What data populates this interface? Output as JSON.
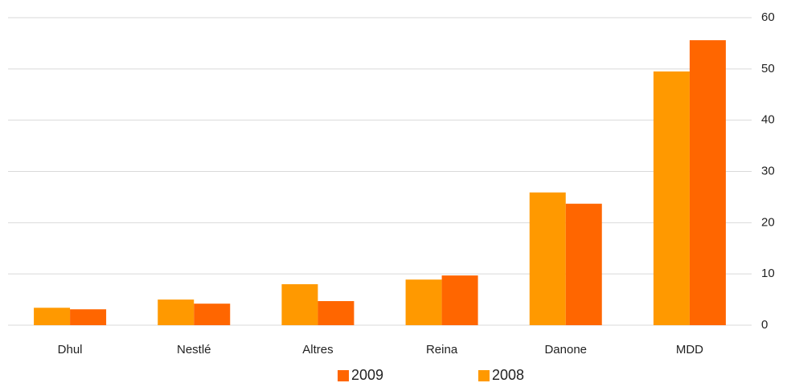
{
  "chart_data": {
    "type": "bar",
    "categories": [
      "Dhul",
      "Nestlé",
      "Altres",
      "Reina",
      "Danone",
      "MDD"
    ],
    "series": [
      {
        "name": "2008",
        "color": "#ff9900",
        "values": [
          3.4,
          5.0,
          8.0,
          8.9,
          25.9,
          49.5
        ]
      },
      {
        "name": "2009",
        "color": "#ff6600",
        "values": [
          3.1,
          4.2,
          4.7,
          9.7,
          23.7,
          55.6
        ]
      }
    ],
    "ylim": [
      0,
      60
    ],
    "yticks": [
      0,
      10,
      20,
      30,
      40,
      50,
      60
    ],
    "grid": true,
    "y_axis_side": "right",
    "legend": "bottom"
  }
}
